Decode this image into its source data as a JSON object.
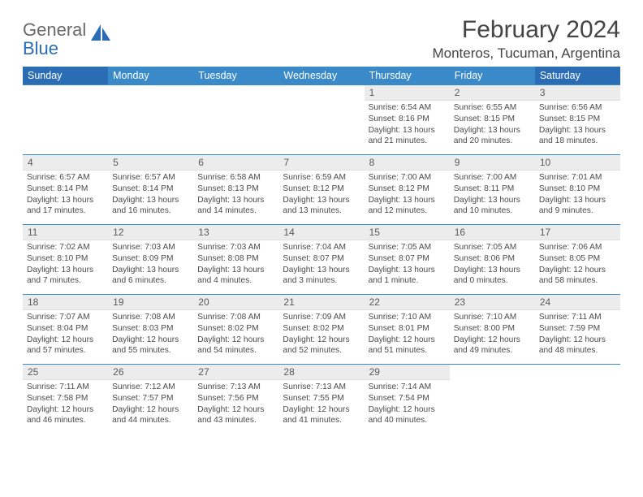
{
  "logo": {
    "word1": "General",
    "word2": "Blue"
  },
  "title": "February 2024",
  "location": "Monteros, Tucuman, Argentina",
  "colors": {
    "header_blue": "#3a89c9",
    "header_blue_weekend": "#2a6db5",
    "row_border": "#3a89c9",
    "daynum_bg": "#ececec",
    "text": "#4a4a4a",
    "title": "#444444"
  },
  "dow": [
    "Sunday",
    "Monday",
    "Tuesday",
    "Wednesday",
    "Thursday",
    "Friday",
    "Saturday"
  ],
  "weeks": [
    [
      null,
      null,
      null,
      null,
      {
        "d": "1",
        "sr": "6:54 AM",
        "ss": "8:16 PM",
        "dl": "13 hours and 21 minutes."
      },
      {
        "d": "2",
        "sr": "6:55 AM",
        "ss": "8:15 PM",
        "dl": "13 hours and 20 minutes."
      },
      {
        "d": "3",
        "sr": "6:56 AM",
        "ss": "8:15 PM",
        "dl": "13 hours and 18 minutes."
      }
    ],
    [
      {
        "d": "4",
        "sr": "6:57 AM",
        "ss": "8:14 PM",
        "dl": "13 hours and 17 minutes."
      },
      {
        "d": "5",
        "sr": "6:57 AM",
        "ss": "8:14 PM",
        "dl": "13 hours and 16 minutes."
      },
      {
        "d": "6",
        "sr": "6:58 AM",
        "ss": "8:13 PM",
        "dl": "13 hours and 14 minutes."
      },
      {
        "d": "7",
        "sr": "6:59 AM",
        "ss": "8:12 PM",
        "dl": "13 hours and 13 minutes."
      },
      {
        "d": "8",
        "sr": "7:00 AM",
        "ss": "8:12 PM",
        "dl": "13 hours and 12 minutes."
      },
      {
        "d": "9",
        "sr": "7:00 AM",
        "ss": "8:11 PM",
        "dl": "13 hours and 10 minutes."
      },
      {
        "d": "10",
        "sr": "7:01 AM",
        "ss": "8:10 PM",
        "dl": "13 hours and 9 minutes."
      }
    ],
    [
      {
        "d": "11",
        "sr": "7:02 AM",
        "ss": "8:10 PM",
        "dl": "13 hours and 7 minutes."
      },
      {
        "d": "12",
        "sr": "7:03 AM",
        "ss": "8:09 PM",
        "dl": "13 hours and 6 minutes."
      },
      {
        "d": "13",
        "sr": "7:03 AM",
        "ss": "8:08 PM",
        "dl": "13 hours and 4 minutes."
      },
      {
        "d": "14",
        "sr": "7:04 AM",
        "ss": "8:07 PM",
        "dl": "13 hours and 3 minutes."
      },
      {
        "d": "15",
        "sr": "7:05 AM",
        "ss": "8:07 PM",
        "dl": "13 hours and 1 minute."
      },
      {
        "d": "16",
        "sr": "7:05 AM",
        "ss": "8:06 PM",
        "dl": "13 hours and 0 minutes."
      },
      {
        "d": "17",
        "sr": "7:06 AM",
        "ss": "8:05 PM",
        "dl": "12 hours and 58 minutes."
      }
    ],
    [
      {
        "d": "18",
        "sr": "7:07 AM",
        "ss": "8:04 PM",
        "dl": "12 hours and 57 minutes."
      },
      {
        "d": "19",
        "sr": "7:08 AM",
        "ss": "8:03 PM",
        "dl": "12 hours and 55 minutes."
      },
      {
        "d": "20",
        "sr": "7:08 AM",
        "ss": "8:02 PM",
        "dl": "12 hours and 54 minutes."
      },
      {
        "d": "21",
        "sr": "7:09 AM",
        "ss": "8:02 PM",
        "dl": "12 hours and 52 minutes."
      },
      {
        "d": "22",
        "sr": "7:10 AM",
        "ss": "8:01 PM",
        "dl": "12 hours and 51 minutes."
      },
      {
        "d": "23",
        "sr": "7:10 AM",
        "ss": "8:00 PM",
        "dl": "12 hours and 49 minutes."
      },
      {
        "d": "24",
        "sr": "7:11 AM",
        "ss": "7:59 PM",
        "dl": "12 hours and 48 minutes."
      }
    ],
    [
      {
        "d": "25",
        "sr": "7:11 AM",
        "ss": "7:58 PM",
        "dl": "12 hours and 46 minutes."
      },
      {
        "d": "26",
        "sr": "7:12 AM",
        "ss": "7:57 PM",
        "dl": "12 hours and 44 minutes."
      },
      {
        "d": "27",
        "sr": "7:13 AM",
        "ss": "7:56 PM",
        "dl": "12 hours and 43 minutes."
      },
      {
        "d": "28",
        "sr": "7:13 AM",
        "ss": "7:55 PM",
        "dl": "12 hours and 41 minutes."
      },
      {
        "d": "29",
        "sr": "7:14 AM",
        "ss": "7:54 PM",
        "dl": "12 hours and 40 minutes."
      },
      null,
      null
    ]
  ],
  "labels": {
    "sunrise": "Sunrise:",
    "sunset": "Sunset:",
    "daylight": "Daylight:"
  }
}
